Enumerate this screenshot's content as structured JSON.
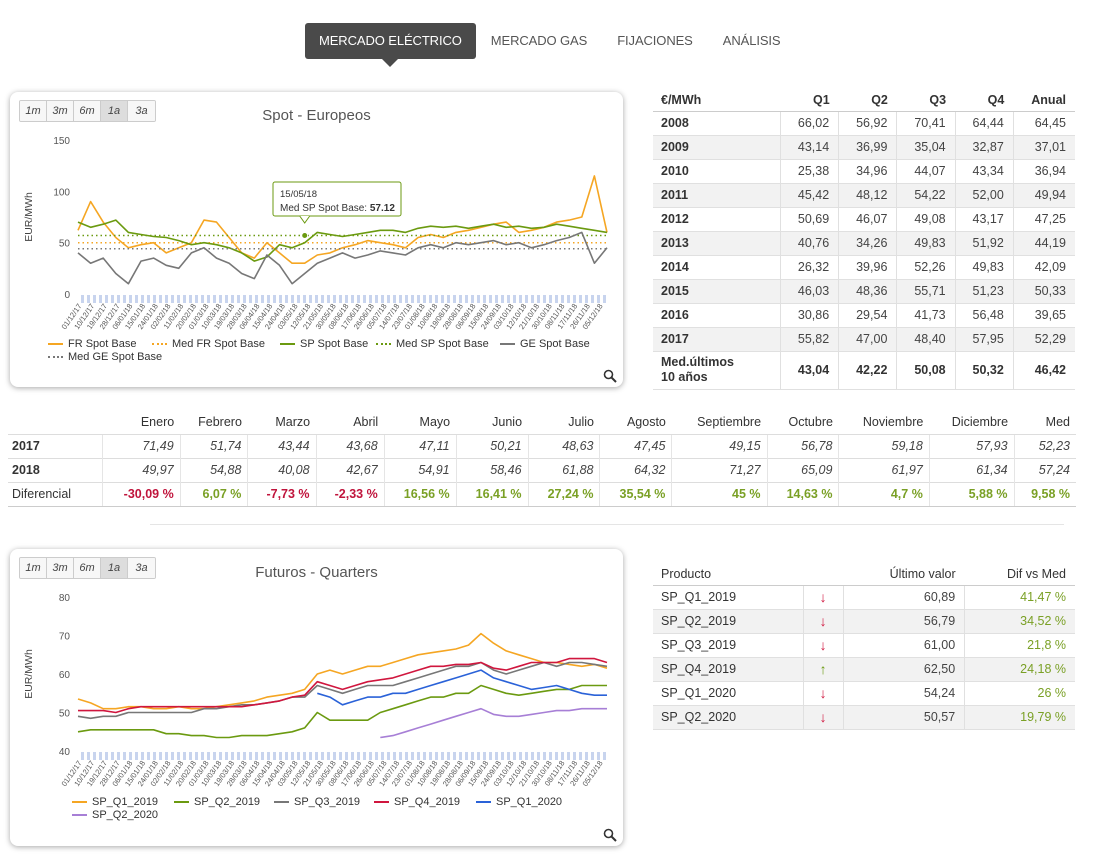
{
  "nav": {
    "items": [
      {
        "label": "MERCADO ELÉCTRICO",
        "active": true
      },
      {
        "label": "MERCADO GAS",
        "active": false
      },
      {
        "label": "FIJACIONES",
        "active": false
      },
      {
        "label": "ANÁLISIS",
        "active": false
      }
    ]
  },
  "range_buttons": [
    "1m",
    "3m",
    "6m",
    "1a",
    "3a"
  ],
  "range_selected": "1a",
  "spot_chart": {
    "title": "Spot - Europeos",
    "ylabel": "EUR/MWh",
    "yticks": [
      "150",
      "100",
      "50",
      "0"
    ],
    "tooltip": {
      "date": "15/05/18",
      "label": "Med SP Spot Base: ",
      "value": "57.12"
    },
    "xticks": [
      "01/12/17",
      "10/12/17",
      "19/12/17",
      "28/12/17",
      "06/01/18",
      "15/01/18",
      "24/01/18",
      "02/02/18",
      "11/02/18",
      "20/02/18",
      "01/03/18",
      "10/03/18",
      "19/03/18",
      "28/03/18",
      "06/04/18",
      "15/04/18",
      "24/04/18",
      "03/05/18",
      "12/05/18",
      "21/05/18",
      "30/05/18",
      "08/06/18",
      "17/06/18",
      "26/06/18",
      "05/07/18",
      "14/07/18",
      "23/07/18",
      "01/08/18",
      "10/08/18",
      "19/08/18",
      "28/08/18",
      "06/09/18",
      "15/09/18",
      "24/09/18",
      "03/10/18",
      "12/10/18",
      "21/10/18",
      "30/10/18",
      "08/11/18",
      "17/11/18",
      "26/11/18",
      "05/12/18"
    ],
    "legend": [
      {
        "name": "FR Spot Base",
        "color": "#f5a623",
        "style": "solid"
      },
      {
        "name": "Med FR Spot Base",
        "color": "#f5a623",
        "style": "dotted"
      },
      {
        "name": "SP Spot Base",
        "color": "#6b9a10",
        "style": "solid"
      },
      {
        "name": "Med SP Spot Base",
        "color": "#6b9a10",
        "style": "dotted"
      },
      {
        "name": "GE Spot Base",
        "color": "#777777",
        "style": "solid"
      },
      {
        "name": "Med GE Spot Base",
        "color": "#777777",
        "style": "dotted"
      }
    ]
  },
  "futures_chart": {
    "title": "Futuros - Quarters",
    "ylabel": "EUR/MWh",
    "yticks": [
      "80",
      "70",
      "60",
      "50",
      "40"
    ],
    "legend": [
      {
        "name": "SP_Q1_2019",
        "color": "#f5a623"
      },
      {
        "name": "SP_Q2_2019",
        "color": "#6b9a10"
      },
      {
        "name": "SP_Q3_2019",
        "color": "#777777"
      },
      {
        "name": "SP_Q4_2019",
        "color": "#d0163e"
      },
      {
        "name": "SP_Q1_2020",
        "color": "#2a62d8"
      },
      {
        "name": "SP_Q2_2020",
        "color": "#a77fd6"
      }
    ]
  },
  "yearly_table": {
    "headers": [
      "€/MWh",
      "Q1",
      "Q2",
      "Q3",
      "Q4",
      "Anual"
    ],
    "rows": [
      [
        "2008",
        "66,02",
        "56,92",
        "70,41",
        "64,44",
        "64,45"
      ],
      [
        "2009",
        "43,14",
        "36,99",
        "35,04",
        "32,87",
        "37,01"
      ],
      [
        "2010",
        "25,38",
        "34,96",
        "44,07",
        "43,34",
        "36,94"
      ],
      [
        "2011",
        "45,42",
        "48,12",
        "54,22",
        "52,00",
        "49,94"
      ],
      [
        "2012",
        "50,69",
        "46,07",
        "49,08",
        "43,17",
        "47,25"
      ],
      [
        "2013",
        "40,76",
        "34,26",
        "49,83",
        "51,92",
        "44,19"
      ],
      [
        "2014",
        "26,32",
        "39,96",
        "52,26",
        "49,83",
        "42,09"
      ],
      [
        "2015",
        "46,03",
        "48,36",
        "55,71",
        "51,23",
        "50,33"
      ],
      [
        "2016",
        "30,86",
        "29,54",
        "41,73",
        "56,48",
        "39,65"
      ],
      [
        "2017",
        "55,82",
        "47,00",
        "48,40",
        "57,95",
        "52,29"
      ]
    ],
    "avg_label_1": "Med.últimos",
    "avg_label_2": "10 años",
    "avg_values": [
      "43,04",
      "42,22",
      "50,08",
      "50,32",
      "46,42"
    ]
  },
  "monthly_table": {
    "headers": [
      "",
      "Enero",
      "Febrero",
      "Marzo",
      "Abril",
      "Mayo",
      "Junio",
      "Julio",
      "Agosto",
      "Septiembre",
      "Octubre",
      "Noviembre",
      "Diciembre",
      "Med"
    ],
    "rows": [
      [
        "2017",
        "71,49",
        "51,74",
        "43,44",
        "43,68",
        "47,11",
        "50,21",
        "48,63",
        "47,45",
        "49,15",
        "56,78",
        "59,18",
        "57,93",
        "52,23"
      ],
      [
        "2018",
        "49,97",
        "54,88",
        "40,08",
        "42,67",
        "54,91",
        "58,46",
        "61,88",
        "64,32",
        "71,27",
        "65,09",
        "61,97",
        "61,34",
        "57,24"
      ]
    ],
    "diff_label": "Diferencial",
    "diff": [
      {
        "value": "-30,09 %",
        "sign": "neg"
      },
      {
        "value": "6,07 %",
        "sign": "pos"
      },
      {
        "value": "-7,73 %",
        "sign": "neg"
      },
      {
        "value": "-2,33 %",
        "sign": "neg"
      },
      {
        "value": "16,56 %",
        "sign": "pos"
      },
      {
        "value": "16,41 %",
        "sign": "pos"
      },
      {
        "value": "27,24 %",
        "sign": "pos"
      },
      {
        "value": "35,54 %",
        "sign": "pos"
      },
      {
        "value": "45 %",
        "sign": "pos"
      },
      {
        "value": "14,63 %",
        "sign": "pos"
      },
      {
        "value": "4,7 %",
        "sign": "pos"
      },
      {
        "value": "5,88 %",
        "sign": "pos"
      },
      {
        "value": "9,58 %",
        "sign": "pos"
      }
    ]
  },
  "products_table": {
    "headers": [
      "Producto",
      "",
      "Último valor",
      "Dif vs Med"
    ],
    "rows": [
      {
        "product": "SP_Q1_2019",
        "trend": "down",
        "value": "60,89",
        "dif": "41,47 %"
      },
      {
        "product": "SP_Q2_2019",
        "trend": "down",
        "value": "56,79",
        "dif": "34,52 %"
      },
      {
        "product": "SP_Q3_2019",
        "trend": "down",
        "value": "61,00",
        "dif": "21,8 %"
      },
      {
        "product": "SP_Q4_2019",
        "trend": "up",
        "value": "62,50",
        "dif": "24,18 %"
      },
      {
        "product": "SP_Q1_2020",
        "trend": "down",
        "value": "54,24",
        "dif": "26 %"
      },
      {
        "product": "SP_Q2_2020",
        "trend": "down",
        "value": "50,57",
        "dif": "19,79 %"
      }
    ]
  },
  "colors": {
    "up": "#6b9a10",
    "down": "#d0163e",
    "nav_active": "#4a4a4a"
  },
  "chart_data": [
    {
      "type": "line",
      "title": "Spot - Europeos",
      "ylabel": "EUR/MWh",
      "ylim": [
        0,
        150
      ],
      "x_start": "01/12/17",
      "x_end": "05/12/18",
      "series": [
        {
          "name": "FR Spot Base",
          "values": [
            62,
            90,
            70,
            55,
            45,
            48,
            50,
            40,
            45,
            50,
            72,
            70,
            55,
            40,
            35,
            50,
            40,
            30,
            30,
            38,
            40,
            45,
            48,
            52,
            50,
            48,
            45,
            55,
            58,
            55,
            60,
            62,
            65,
            68,
            70,
            60,
            62,
            65,
            70,
            72,
            75,
            115,
            60
          ]
        },
        {
          "name": "Med FR Spot Base",
          "values": [
            50,
            50,
            50,
            50,
            50,
            50,
            50,
            50,
            50,
            50,
            50,
            50,
            50,
            50,
            50,
            50,
            50,
            50,
            50,
            50,
            50,
            50,
            50,
            50,
            50,
            50,
            50,
            50,
            50,
            50,
            50,
            50,
            50,
            50,
            50,
            50,
            50,
            50,
            50,
            50,
            50,
            50,
            50
          ]
        },
        {
          "name": "SP Spot Base",
          "values": [
            70,
            65,
            68,
            72,
            60,
            58,
            56,
            55,
            52,
            48,
            50,
            48,
            45,
            40,
            32,
            36,
            48,
            45,
            50,
            60,
            58,
            56,
            58,
            60,
            62,
            62,
            60,
            64,
            66,
            65,
            66,
            64,
            66,
            68,
            65,
            66,
            64,
            65,
            68,
            66,
            64,
            62,
            60
          ]
        },
        {
          "name": "Med SP Spot Base",
          "values": [
            57,
            57,
            57,
            57,
            57,
            57,
            57,
            57,
            57,
            57,
            57,
            57,
            57,
            57,
            57,
            57,
            57,
            57,
            57,
            57,
            57,
            57,
            57,
            57,
            57,
            57,
            57,
            57,
            57,
            57,
            57,
            57,
            57,
            57,
            57,
            57,
            57,
            57,
            57,
            57,
            57,
            57,
            57
          ]
        },
        {
          "name": "GE Spot Base",
          "values": [
            40,
            30,
            35,
            20,
            10,
            32,
            35,
            28,
            25,
            40,
            45,
            35,
            30,
            20,
            15,
            38,
            28,
            10,
            20,
            30,
            35,
            40,
            35,
            38,
            42,
            40,
            38,
            45,
            48,
            45,
            50,
            48,
            50,
            52,
            48,
            50,
            45,
            48,
            52,
            55,
            60,
            30,
            45
          ]
        },
        {
          "name": "Med GE Spot Base",
          "values": [
            44,
            44,
            44,
            44,
            44,
            44,
            44,
            44,
            44,
            44,
            44,
            44,
            44,
            44,
            44,
            44,
            44,
            44,
            44,
            44,
            44,
            44,
            44,
            44,
            44,
            44,
            44,
            44,
            44,
            44,
            44,
            44,
            44,
            44,
            44,
            44,
            44,
            44,
            44,
            44,
            44,
            44,
            44
          ]
        }
      ]
    },
    {
      "type": "line",
      "title": "Futuros - Quarters",
      "ylabel": "EUR/MWh",
      "ylim": [
        40,
        80
      ],
      "x_start": "01/12/17",
      "x_end": "05/12/18",
      "series": [
        {
          "name": "SP_Q1_2019",
          "values": [
            53.5,
            52.5,
            51,
            51,
            51.5,
            51.5,
            51,
            51,
            51.5,
            51,
            51,
            51.5,
            52,
            52.5,
            53,
            54,
            54.5,
            55,
            56,
            60,
            61,
            60,
            61,
            62,
            62,
            63,
            64,
            65,
            65.5,
            66,
            66.5,
            67.5,
            70.5,
            68,
            66,
            65,
            64,
            63,
            63,
            62.5,
            62,
            62.5,
            61.5
          ]
        },
        {
          "name": "SP_Q2_2019",
          "values": [
            45,
            45.5,
            45.5,
            45.5,
            45.5,
            45.5,
            45.5,
            44.5,
            44.5,
            44,
            44,
            43.5,
            43.5,
            44,
            44,
            44,
            44.5,
            45,
            46,
            50,
            48,
            48,
            48,
            48,
            50,
            51,
            52,
            53,
            54,
            54,
            55,
            55,
            57,
            56,
            55,
            54.5,
            55,
            55.5,
            56,
            56,
            57,
            57,
            57
          ]
        },
        {
          "name": "SP_Q3_2019",
          "values": [
            49,
            48.5,
            49,
            49,
            50,
            50,
            50,
            50,
            50,
            50,
            51,
            51,
            51.5,
            52,
            52,
            52.5,
            53,
            54,
            54,
            57,
            56,
            55,
            56,
            57,
            57,
            57,
            58,
            59,
            60,
            61,
            62,
            62,
            63,
            61,
            60,
            61,
            62,
            63,
            62,
            63,
            63,
            62.5,
            62
          ]
        },
        {
          "name": "SP_Q4_2019",
          "values": [
            50.5,
            50.5,
            50.5,
            50,
            51,
            51.5,
            51.5,
            51.5,
            51.5,
            51.5,
            51.5,
            51.5,
            51.5,
            51.5,
            52,
            52.5,
            53,
            54,
            54.5,
            58,
            57,
            56,
            57,
            58,
            58.5,
            59,
            60,
            61,
            62,
            62,
            62.5,
            62.5,
            63,
            61.5,
            61,
            62,
            63,
            63,
            63,
            64,
            64,
            64,
            63
          ]
        },
        {
          "name": "SP_Q1_2020",
          "values": [
            null,
            null,
            null,
            null,
            null,
            null,
            null,
            null,
            null,
            null,
            null,
            null,
            null,
            null,
            null,
            null,
            null,
            null,
            null,
            55,
            54,
            52,
            53,
            54,
            54,
            55,
            55,
            56,
            57,
            58,
            59,
            60,
            61,
            59,
            58,
            57,
            56,
            56.5,
            57,
            56,
            55,
            54.5,
            54.5
          ]
        },
        {
          "name": "SP_Q2_2020",
          "values": [
            null,
            null,
            null,
            null,
            null,
            null,
            null,
            null,
            null,
            null,
            null,
            null,
            null,
            null,
            null,
            null,
            null,
            null,
            null,
            null,
            null,
            null,
            null,
            null,
            43.5,
            44,
            45,
            46,
            47,
            48,
            49,
            50,
            51,
            49.5,
            49,
            49,
            49.5,
            50,
            50.5,
            50.5,
            51,
            51,
            51
          ]
        }
      ]
    }
  ]
}
